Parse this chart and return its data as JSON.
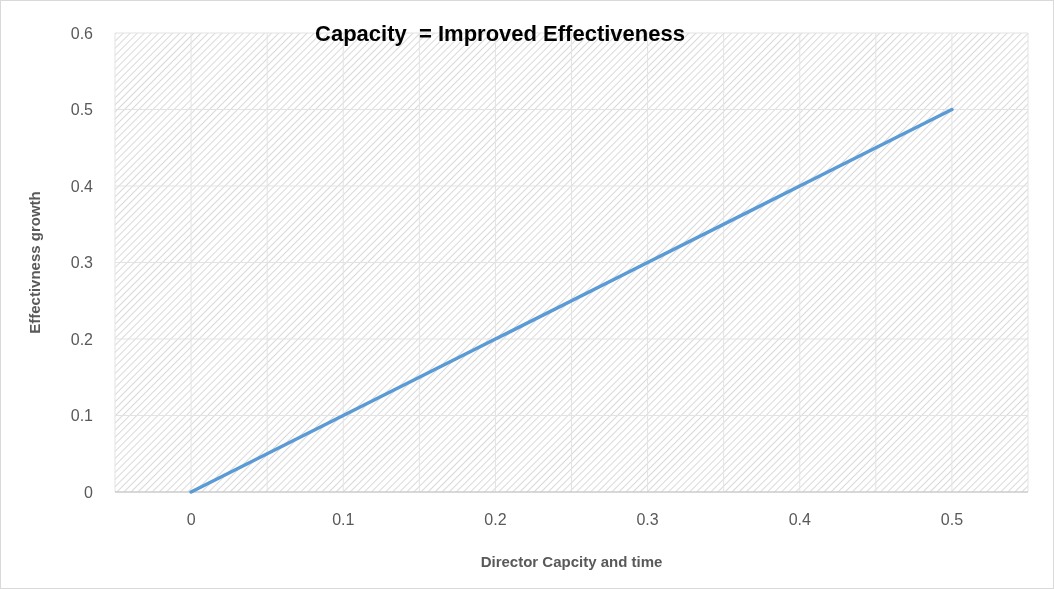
{
  "chart_data": {
    "type": "line",
    "title": "Capacity  = Improved Effectiveness",
    "xlabel": "Director Capcity and time",
    "ylabel": "Effectivness growth",
    "x": [
      0,
      0.1,
      0.2,
      0.3,
      0.4,
      0.5
    ],
    "series": [
      {
        "color": "#5b9bd5",
        "values": [
          0,
          0.1,
          0.2,
          0.3,
          0.4,
          0.5
        ]
      }
    ],
    "xlim": [
      -0.05,
      0.55
    ],
    "xticks": [
      {
        "value": -0.05,
        "label": null
      },
      0,
      {
        "value": 0.05,
        "label": null
      },
      0.1,
      {
        "value": 0.15,
        "label": null
      },
      0.2,
      {
        "value": 0.25,
        "label": null
      },
      0.3,
      {
        "value": 0.35,
        "label": null
      },
      0.4,
      {
        "value": 0.45,
        "label": null
      },
      0.5,
      {
        "value": 0.55,
        "label": null
      }
    ],
    "ylim": [
      0,
      0.6
    ],
    "yticks": [
      0,
      0.1,
      0.2,
      0.3,
      0.4,
      0.5,
      0.6
    ],
    "grid": true,
    "marker": "none",
    "line_style": "solid"
  }
}
